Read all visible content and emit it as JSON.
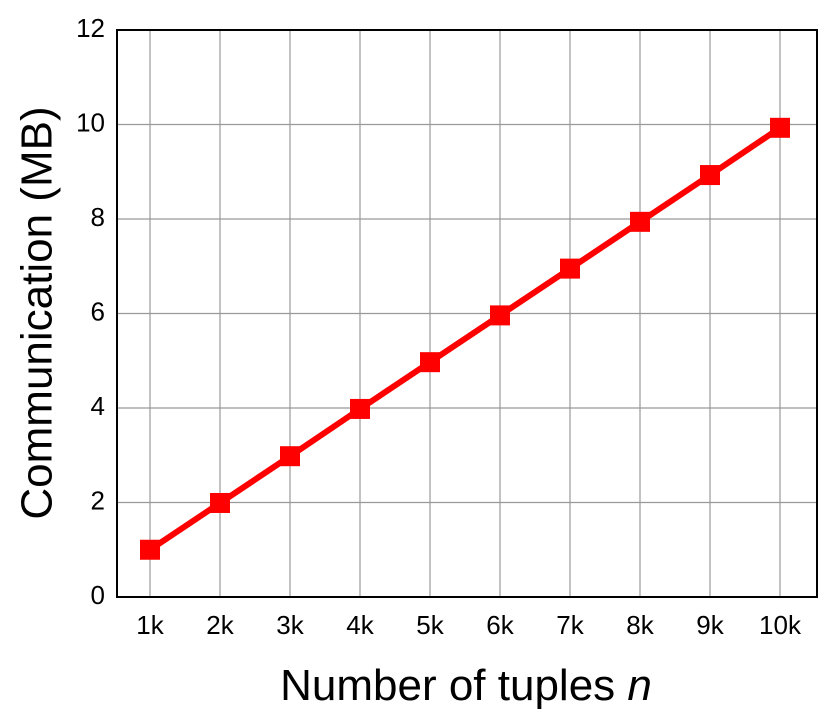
{
  "chart_data": {
    "type": "line",
    "x_label": "Number of tuples",
    "x_label_variable": "n",
    "y_label": "Communication (MB)",
    "categories": [
      "1k",
      "2k",
      "3k",
      "4k",
      "5k",
      "6k",
      "7k",
      "8k",
      "9k",
      "10k"
    ],
    "series": [
      {
        "color": "#ff0000",
        "values": [
          1.0,
          1.99,
          2.98,
          3.98,
          4.97,
          5.96,
          6.95,
          7.94,
          8.93,
          9.93
        ]
      }
    ],
    "ylim": [
      0,
      12
    ],
    "yticks": [
      0,
      2,
      4,
      6,
      8,
      10,
      12
    ],
    "grid": true
  }
}
